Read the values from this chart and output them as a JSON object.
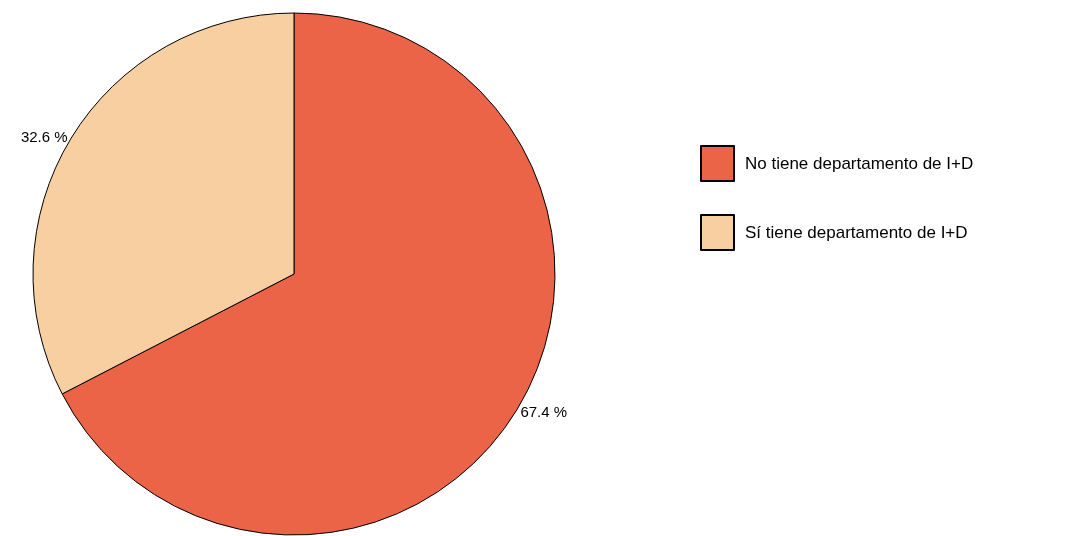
{
  "chart_data": {
    "type": "pie",
    "categories": [
      "No tiene departamento de I+D",
      "Sí tiene departamento de I+D"
    ],
    "values": [
      67.4,
      32.6
    ],
    "colors": [
      "#ec6448",
      "#f8cfa0"
    ],
    "value_labels": [
      "67.4 %",
      "32.6 %"
    ],
    "legend": "right"
  }
}
